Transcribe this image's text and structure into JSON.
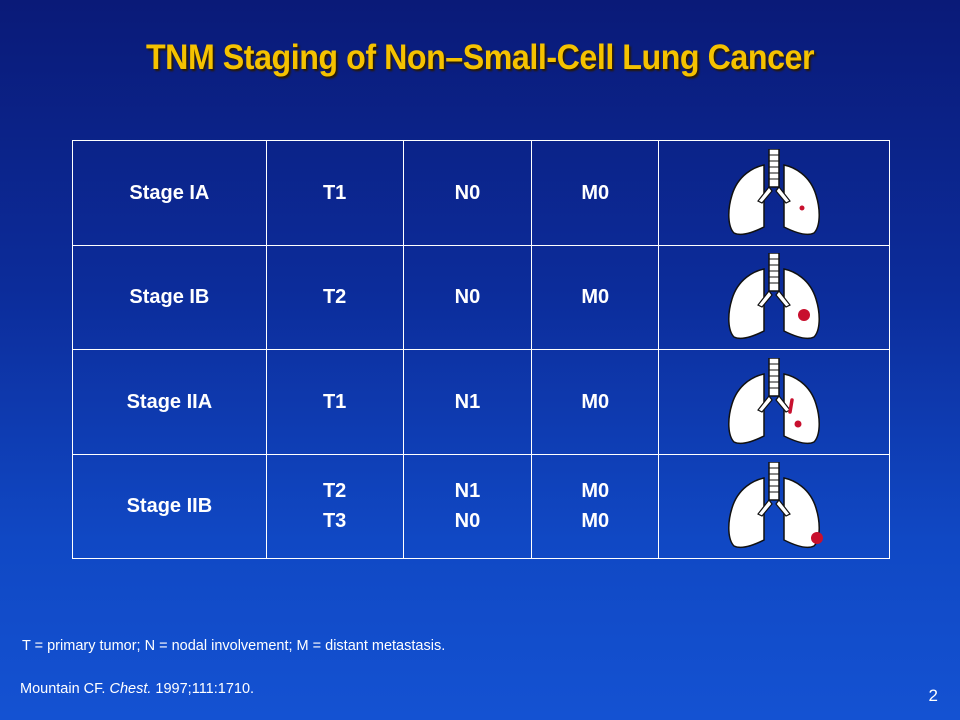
{
  "title": "TNM Staging of Non–Small-Cell Lung Cancer",
  "table": {
    "rows": [
      {
        "stage": "Stage IA",
        "t": [
          "T1"
        ],
        "n": [
          "N0"
        ],
        "m": [
          "M0"
        ],
        "lung_icon": "lung-tumor-small-icon"
      },
      {
        "stage": "Stage IB",
        "t": [
          "T2"
        ],
        "n": [
          "N0"
        ],
        "m": [
          "M0"
        ],
        "lung_icon": "lung-tumor-large-icon"
      },
      {
        "stage": "Stage IIA",
        "t": [
          "T1"
        ],
        "n": [
          "N1"
        ],
        "m": [
          "M0"
        ],
        "lung_icon": "lung-tumor-node-icon"
      },
      {
        "stage": "Stage IIB",
        "t": [
          "T2",
          "T3"
        ],
        "n": [
          "N1",
          "N0"
        ],
        "m": [
          "M0",
          "M0"
        ],
        "lung_icon": "lung-tumor-peripheral-icon"
      }
    ]
  },
  "footnote": "T = primary tumor; N = nodal involvement; M = distant metastasis.",
  "reference": {
    "prefix": "Mountain CF. ",
    "journal": "Chest.",
    "suffix": " 1997;111:1710."
  },
  "slide_number": "2",
  "colors": {
    "title": "#f5c200",
    "tumor": "#c8102e",
    "background_top": "#0a1a78",
    "background_bottom": "#1452d2"
  }
}
